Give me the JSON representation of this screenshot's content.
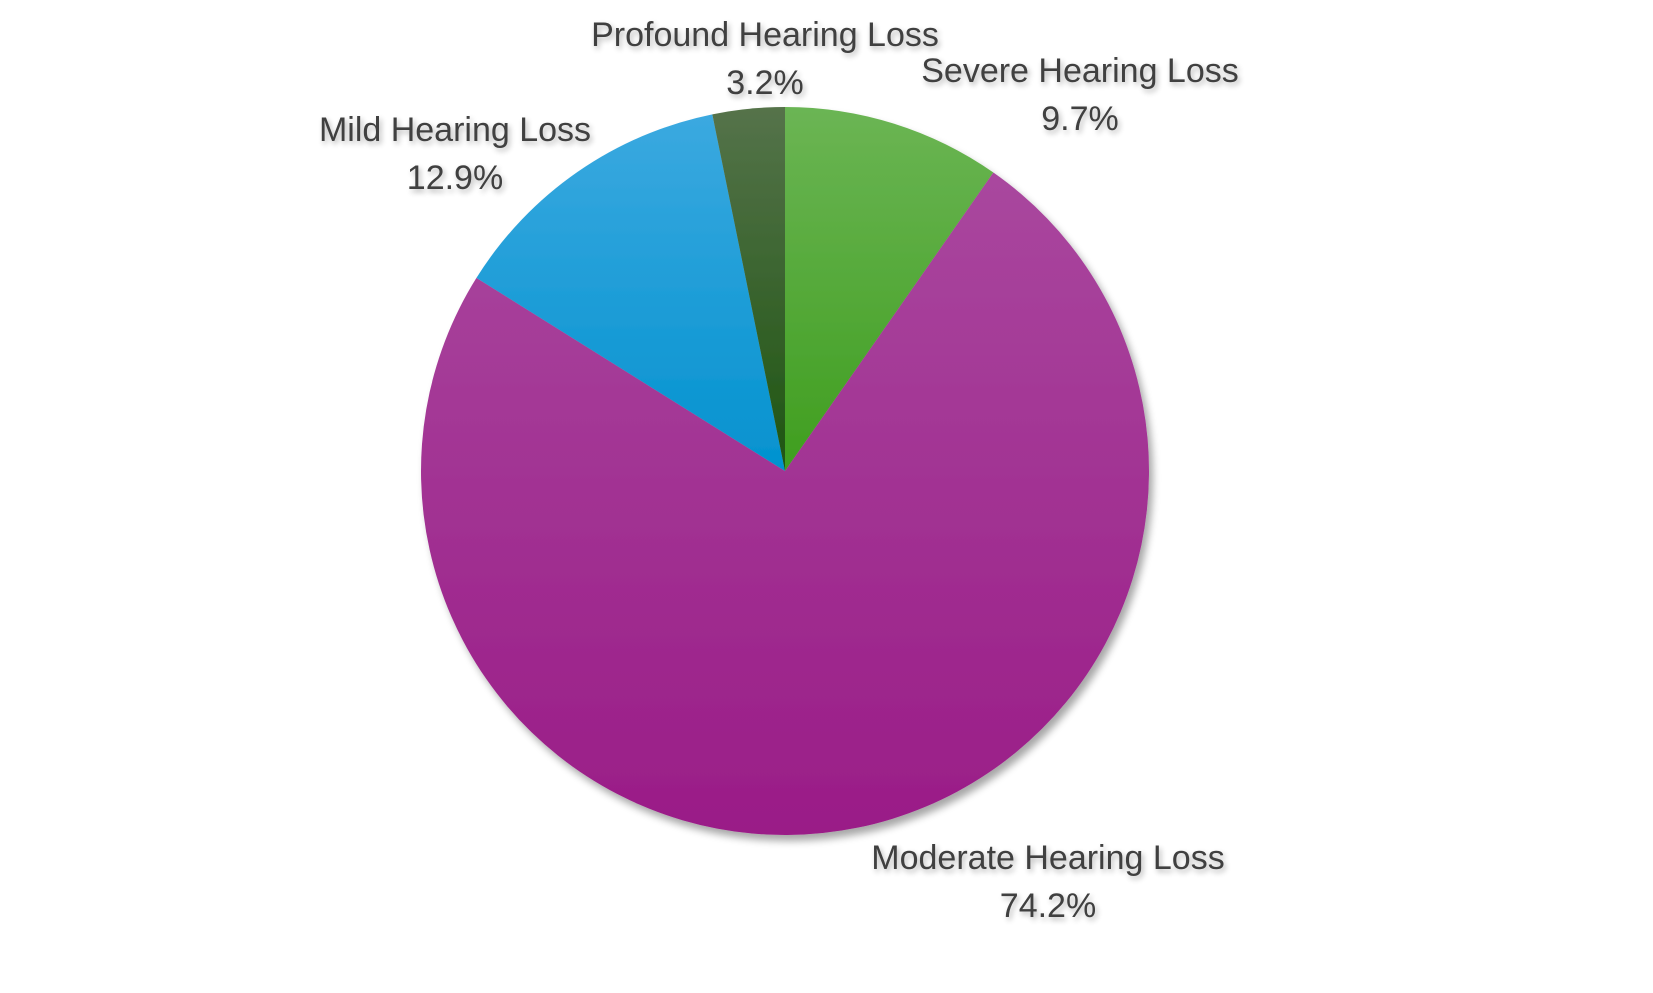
{
  "chart_data": {
    "type": "pie",
    "title": "",
    "start_angle_deg": 0,
    "direction": "clockwise",
    "slices": [
      {
        "label": "Severe Hearing Loss",
        "value": 9.7,
        "value_label": "9.7%",
        "color_top": "#6BB554",
        "color_bottom": "#3F9E1F"
      },
      {
        "label": "Moderate Hearing Loss",
        "value": 74.2,
        "value_label": "74.2%",
        "color_top": "#A9479E",
        "color_bottom": "#9A1C87"
      },
      {
        "label": "Mild Hearing Loss",
        "value": 12.9,
        "value_label": "12.9%",
        "color_top": "#3BA9E0",
        "color_bottom": "#0392CF"
      },
      {
        "label": "Profound Hearing Loss",
        "value": 3.2,
        "value_label": "3.2%",
        "color_top": "#55734A",
        "color_bottom": "#1E5512"
      }
    ]
  }
}
